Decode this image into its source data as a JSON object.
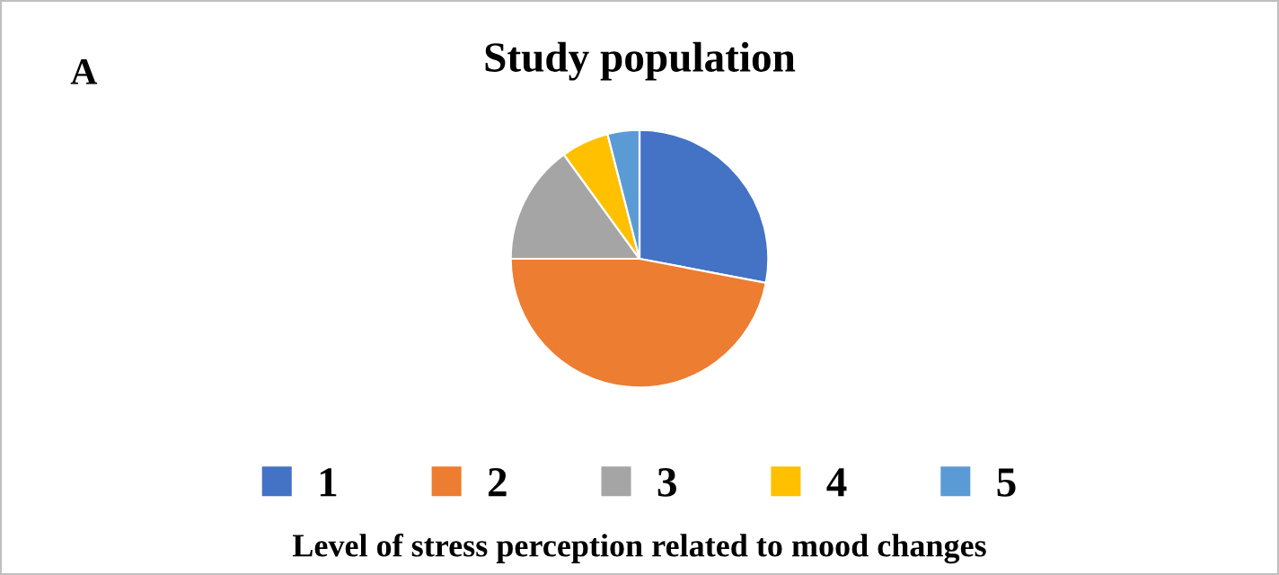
{
  "chart_data": {
    "type": "pie",
    "title": "Study population",
    "categories": [
      "1",
      "2",
      "3",
      "4",
      "5"
    ],
    "values": [
      28,
      47,
      15,
      6,
      4
    ],
    "colors": [
      "#4472c4",
      "#ed7d31",
      "#a5a5a5",
      "#ffc000",
      "#5b9bd5"
    ],
    "legend": "bottom",
    "xlabel": "Level of stress perception related to mood changes",
    "annotations": [
      "A"
    ]
  }
}
